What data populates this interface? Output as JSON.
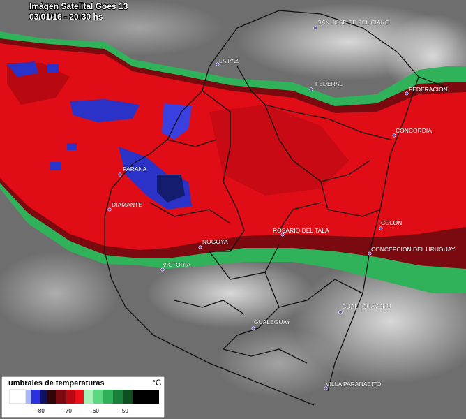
{
  "header": {
    "title": "Imágen Satelital Goes 13",
    "datetime": "03/01/16 - 20:30 hs"
  },
  "cities": [
    "SAN JOSE DE FELICIANO",
    "LA PAZ",
    "FEDERAL",
    "FEDERACION",
    "CONCORDIA",
    "PARANA",
    "DIAMANTE",
    "NOGOYA",
    "ROSARIO DEL TALA",
    "COLON",
    "CONCEPCION DEL URUGUAY",
    "VICTORIA",
    "GUALEGUAYCHU",
    "GUALEGUAY",
    "VILLA PARANACITO"
  ],
  "legend": {
    "title": "umbrales de temperaturas",
    "unit": "°C",
    "ticks": [
      -80,
      -70,
      -60,
      -50
    ]
  }
}
